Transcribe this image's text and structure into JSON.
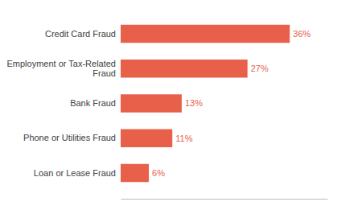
{
  "chart_data": {
    "type": "bar",
    "orientation": "horizontal",
    "categories": [
      "Loan or Lease Fraud",
      "Phone or Utilities Fraud",
      "Bank Fraud",
      "Employment or Tax-Related\nFraud",
      "Credit Card Fraud"
    ],
    "values": [
      6,
      11,
      13,
      27,
      36
    ],
    "value_labels": [
      "6%",
      "11%",
      "13%",
      "27%",
      "36%"
    ],
    "data_labels": true,
    "color": "#E8604A",
    "xlim": [
      0,
      44
    ],
    "tick_labels": "y"
  }
}
